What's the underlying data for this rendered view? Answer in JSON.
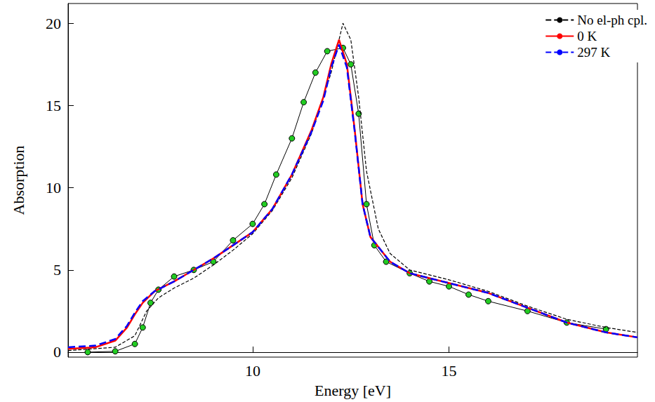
{
  "chart_data": {
    "type": "line",
    "x_label": "Energy [eV]",
    "y_label": "Absorption",
    "xlim": [
      5.3,
      19.8
    ],
    "xticks": [
      10,
      15
    ],
    "ylim": [
      -0.3,
      21.2
    ],
    "yticks": [
      0,
      5,
      10,
      15,
      20
    ],
    "grid": false,
    "legend": "upper right",
    "series": [
      {
        "name": "No el-ph cpl.",
        "color": "#000000",
        "line_style": "dashed",
        "marker": "none",
        "x": [
          5.3,
          6.5,
          7.0,
          7.3,
          7.6,
          8.0,
          8.5,
          9.0,
          9.5,
          10.0,
          10.5,
          11.0,
          11.5,
          12.0,
          12.3,
          12.5,
          12.7,
          12.9,
          13.2,
          13.5,
          14.0,
          15.0,
          16.0,
          17.0,
          18.0,
          19.0,
          19.8
        ],
        "values": [
          0.1,
          0.3,
          1.0,
          2.5,
          3.3,
          3.9,
          4.5,
          5.3,
          6.2,
          7.2,
          8.6,
          10.6,
          13.3,
          17.0,
          20.0,
          19.0,
          15.5,
          11.0,
          7.5,
          6.0,
          5.0,
          4.4,
          3.7,
          2.8,
          2.0,
          1.5,
          1.2
        ]
      },
      {
        "name": "0 K",
        "color": "#ff0000",
        "line_style": "solid",
        "marker": "none",
        "x": [
          5.3,
          6.0,
          6.5,
          6.8,
          7.0,
          7.2,
          7.5,
          8.0,
          8.5,
          9.0,
          9.5,
          10.0,
          10.5,
          11.0,
          11.5,
          11.8,
          12.0,
          12.2,
          12.4,
          12.6,
          12.8,
          13.0,
          13.5,
          14.0,
          15.0,
          16.0,
          17.0,
          18.0,
          19.0,
          19.8
        ],
        "values": [
          0.2,
          0.3,
          0.7,
          1.5,
          2.3,
          3.0,
          3.7,
          4.3,
          5.0,
          5.7,
          6.5,
          7.3,
          8.7,
          10.8,
          13.5,
          15.5,
          17.5,
          19.0,
          17.5,
          13.5,
          9.0,
          7.0,
          5.5,
          4.8,
          4.2,
          3.6,
          2.7,
          1.8,
          1.2,
          0.9
        ]
      },
      {
        "name": "297 K",
        "color": "#0000ff",
        "line_style": "dashed",
        "marker": "none",
        "x": [
          5.3,
          6.0,
          6.5,
          6.8,
          7.0,
          7.2,
          7.5,
          8.0,
          8.5,
          9.0,
          9.5,
          10.0,
          10.5,
          11.0,
          11.5,
          11.8,
          12.0,
          12.2,
          12.4,
          12.6,
          12.8,
          13.0,
          13.5,
          14.0,
          15.0,
          16.0,
          17.0,
          18.0,
          19.0,
          19.8
        ],
        "values": [
          0.3,
          0.4,
          0.8,
          1.6,
          2.4,
          3.1,
          3.7,
          4.3,
          5.0,
          5.7,
          6.5,
          7.3,
          8.7,
          10.8,
          13.4,
          15.3,
          17.3,
          18.7,
          17.3,
          13.4,
          9.0,
          7.0,
          5.5,
          4.8,
          4.2,
          3.6,
          2.7,
          1.8,
          1.2,
          0.9
        ]
      },
      {
        "color": "#22cc22",
        "line_style": "solid",
        "marker": "circle",
        "x": [
          5.8,
          6.5,
          7.0,
          7.2,
          7.4,
          7.6,
          8.0,
          8.5,
          9.0,
          9.5,
          10.0,
          10.3,
          10.6,
          11.0,
          11.3,
          11.6,
          11.9,
          12.3,
          12.5,
          12.7,
          12.9,
          13.1,
          13.4,
          14.0,
          14.5,
          15.0,
          15.5,
          16.0,
          17.0,
          18.0,
          19.0
        ],
        "values": [
          0.0,
          0.05,
          0.5,
          1.5,
          3.0,
          3.8,
          4.6,
          5.0,
          5.5,
          6.8,
          7.8,
          9.0,
          10.8,
          13.0,
          15.2,
          17.0,
          18.3,
          18.5,
          17.5,
          14.5,
          9.0,
          6.5,
          5.5,
          4.8,
          4.3,
          4.0,
          3.5,
          3.1,
          2.5,
          1.8,
          1.4
        ]
      }
    ]
  }
}
